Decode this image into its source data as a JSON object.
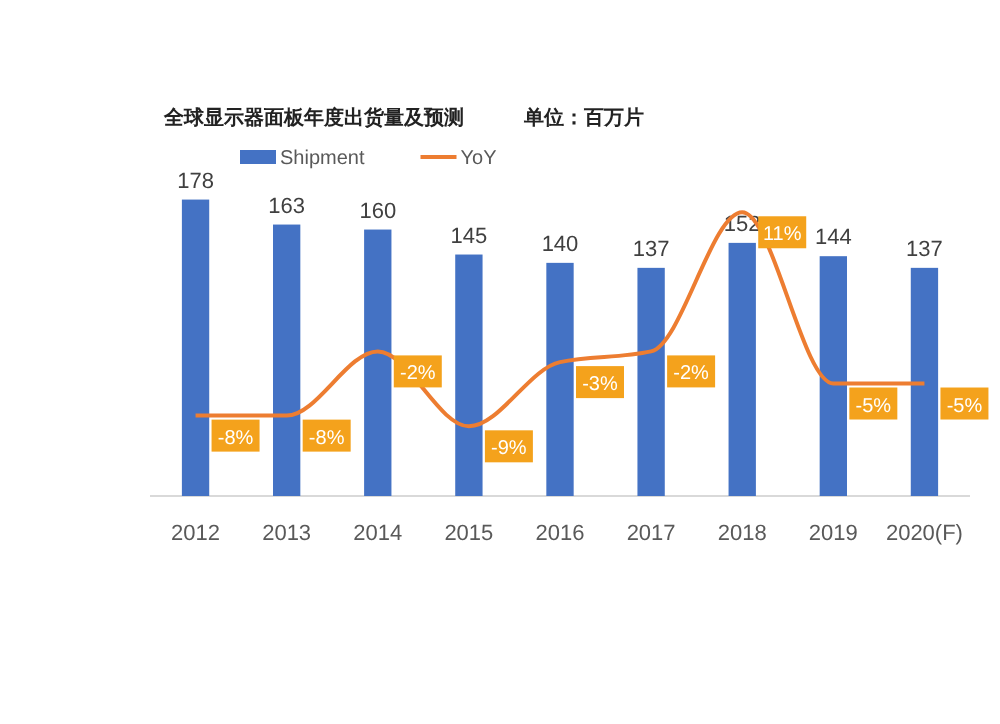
{
  "chart_data": {
    "type": "bar",
    "title": "全球显示器面板年度出货量及预测",
    "subtitle": "单位：百万片",
    "categories": [
      "2012",
      "2013",
      "2014",
      "2015",
      "2016",
      "2017",
      "2018",
      "2019",
      "2020(F)"
    ],
    "series": [
      {
        "name": "Shipment",
        "color": "#4472c4",
        "values": [
          178,
          163,
          160,
          145,
          140,
          137,
          152,
          144,
          137
        ]
      },
      {
        "name": "YoY",
        "type": "line",
        "axis": "y2",
        "color": "#ed7d31",
        "values": [
          -8,
          -8,
          -2,
          -9,
          -3,
          -2,
          11,
          -5,
          -5
        ],
        "value_labels": [
          "-8%",
          "-8%",
          "-2%",
          "-9%",
          "-3%",
          "-2%",
          "11%",
          "-5%",
          "-5%"
        ]
      }
    ],
    "data_labels": true,
    "legend": "top",
    "tick_labels": "x"
  }
}
